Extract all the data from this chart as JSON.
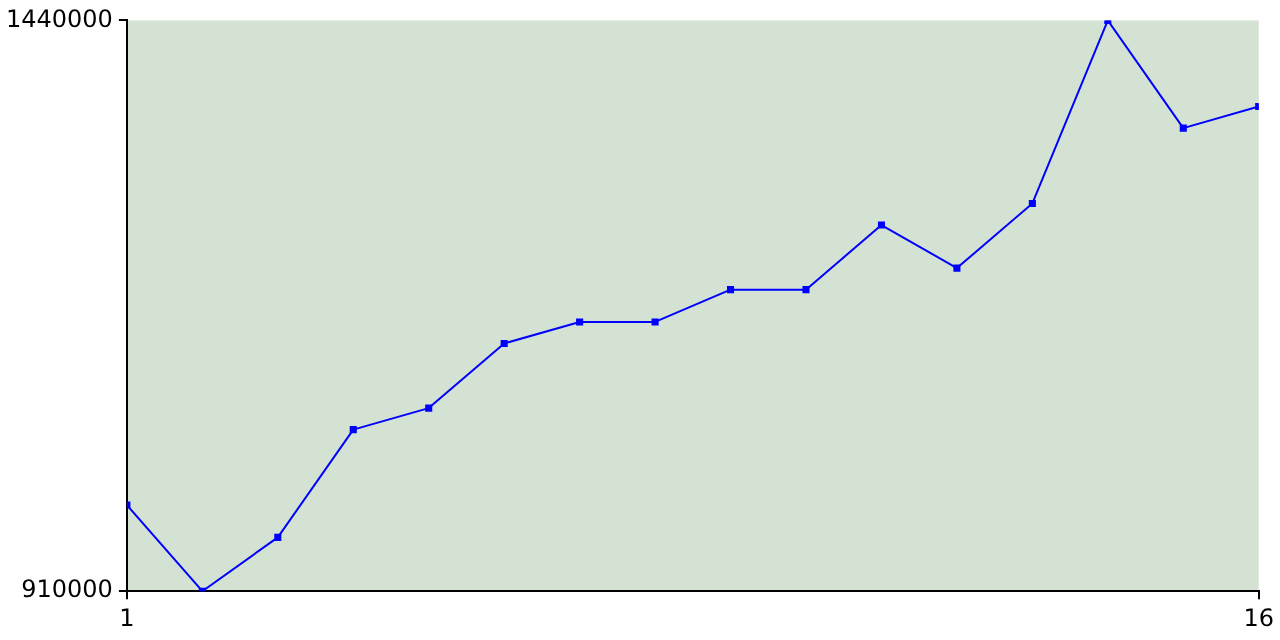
{
  "chart_data": {
    "type": "line",
    "x": [
      1,
      2,
      3,
      4,
      5,
      6,
      7,
      8,
      9,
      10,
      11,
      12,
      13,
      14,
      15,
      16
    ],
    "series": [
      {
        "color": "#0000ff",
        "values": [
          990000,
          910000,
          960000,
          1060000,
          1080000,
          1140000,
          1160000,
          1160000,
          1190000,
          1190000,
          1250000,
          1210000,
          1270000,
          1440000,
          1340000,
          1360000
        ]
      }
    ],
    "xlim": [
      1,
      16
    ],
    "xticks": [
      1,
      16
    ],
    "ylim": [
      910000,
      1440000
    ],
    "yticks": [
      910000,
      1440000
    ],
    "grid": false,
    "legend": false,
    "marker": "square",
    "line_style": "solid"
  }
}
